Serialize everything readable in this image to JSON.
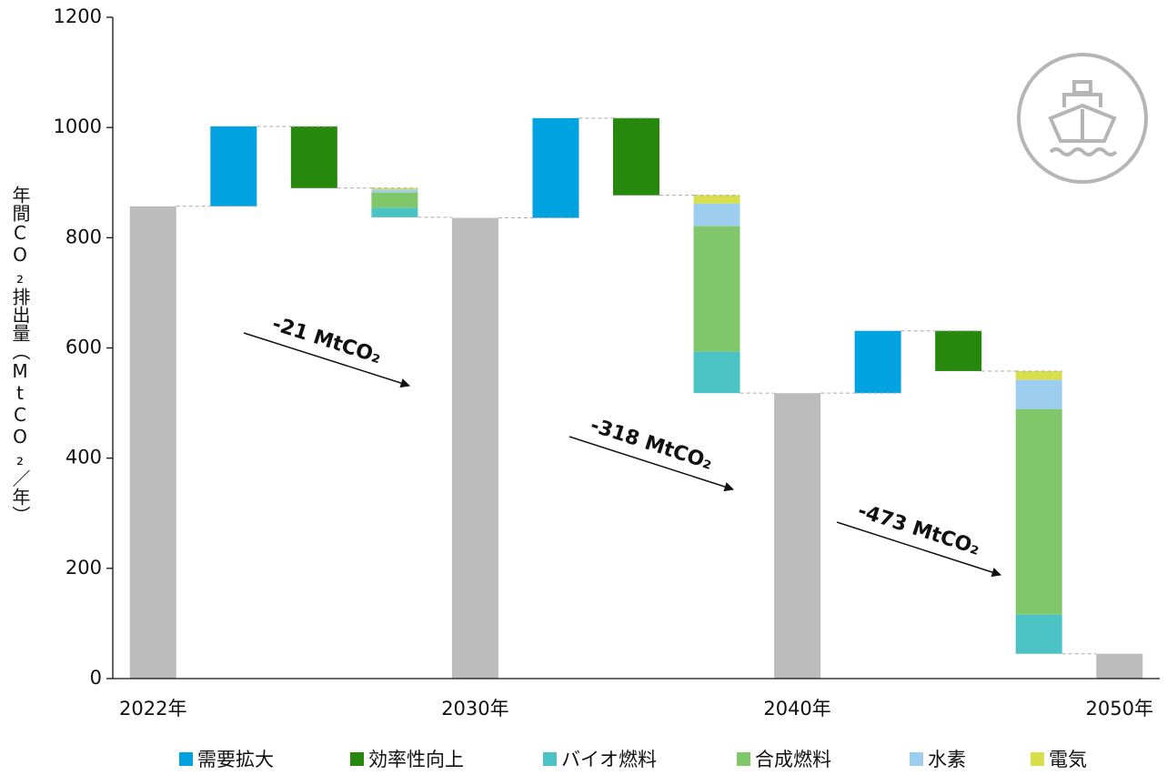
{
  "chart_data": {
    "type": "waterfall",
    "y_label": "年間CO₂排出量（MtCO₂／年）",
    "categories": [
      "2022年",
      null,
      null,
      null,
      "2030年",
      null,
      null,
      null,
      "2040年",
      null,
      null,
      null,
      "2050年"
    ],
    "totals": {
      "color": "#bbbcbb",
      "values": [
        857,
        null,
        null,
        null,
        836,
        null,
        null,
        null,
        518,
        null,
        null,
        null,
        45
      ]
    },
    "series": [
      {
        "name": "需要拡大",
        "color": "#00a3e0",
        "values": [
          null,
          145,
          null,
          null,
          null,
          181,
          null,
          null,
          null,
          113,
          null,
          null,
          null
        ]
      },
      {
        "name": "効率性向上",
        "color": "#26890d",
        "values": [
          null,
          null,
          -112,
          null,
          null,
          null,
          -140,
          null,
          null,
          null,
          -73,
          null,
          null
        ]
      },
      {
        "name": "バイオ燃料",
        "color": "#4bc3c5",
        "values": [
          null,
          null,
          null,
          -17,
          null,
          null,
          null,
          -75,
          null,
          null,
          null,
          -71,
          null
        ]
      },
      {
        "name": "合成燃料",
        "color": "#7fc76a",
        "values": [
          null,
          null,
          null,
          -28,
          null,
          null,
          null,
          -228,
          null,
          null,
          null,
          -373,
          null
        ]
      },
      {
        "name": "水素",
        "color": "#9dcdef",
        "values": [
          null,
          null,
          null,
          -5,
          null,
          null,
          null,
          -41,
          null,
          null,
          null,
          -53,
          null
        ]
      },
      {
        "name": "電気",
        "color": "#d7df4b",
        "values": [
          null,
          null,
          null,
          -3,
          null,
          null,
          null,
          -15,
          null,
          null,
          null,
          -16,
          null
        ]
      }
    ],
    "annotations": [
      "-21 MtCO₂",
      "-318 MtCO₂",
      "-473 MtCO₂"
    ],
    "ylim": [
      0,
      1200
    ],
    "yticks": [
      0,
      200,
      400,
      600,
      800,
      1000,
      1200
    ]
  }
}
